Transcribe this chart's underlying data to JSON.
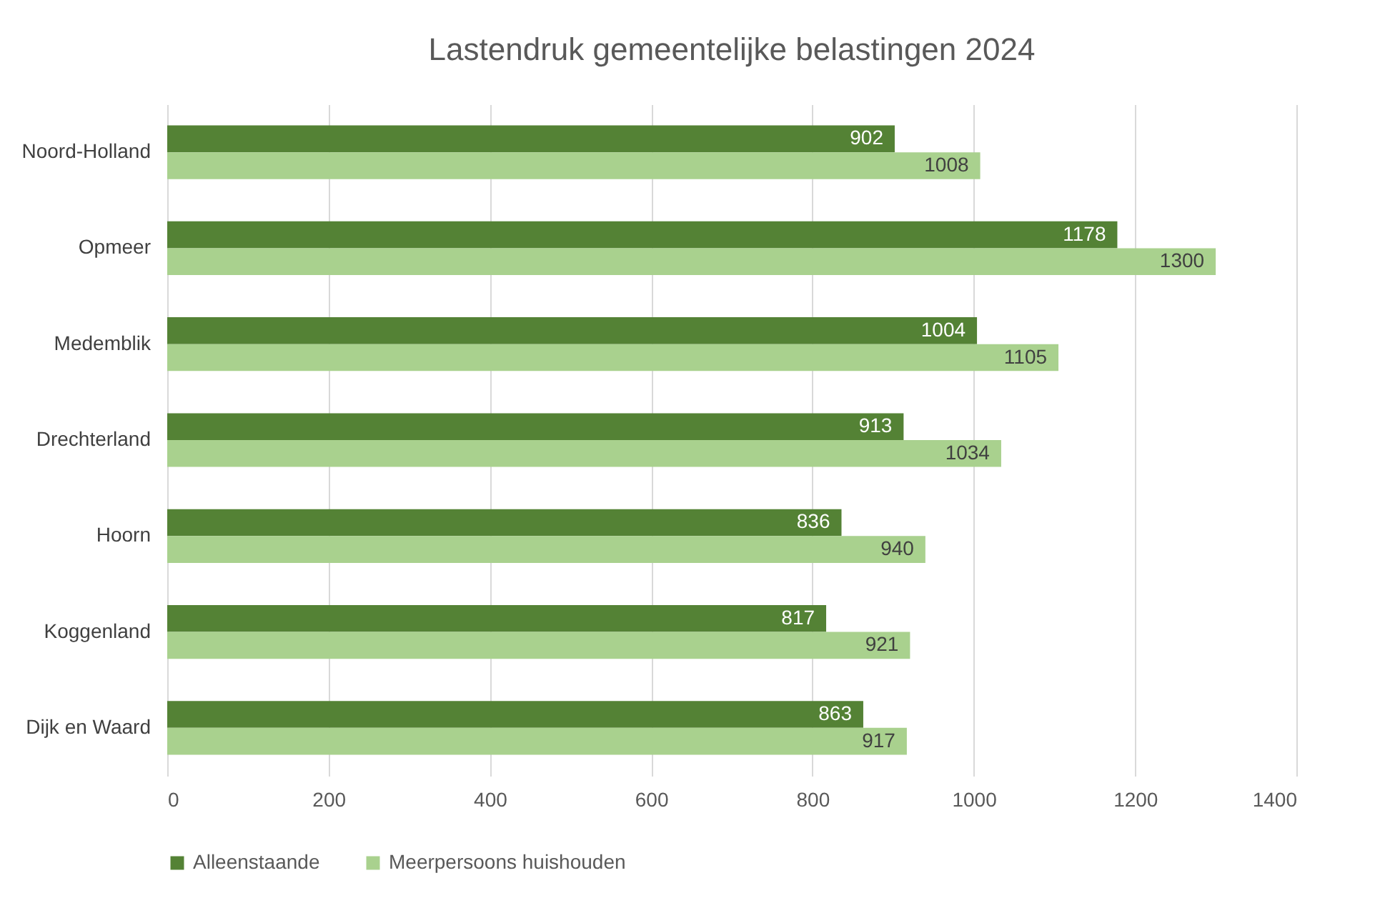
{
  "chart_data": {
    "type": "bar",
    "orientation": "horizontal",
    "title": "Lastendruk gemeentelijke belastingen 2024",
    "categories": [
      "Noord-Holland",
      "Opmeer",
      "Medemblik",
      "Drechterland",
      "Hoorn",
      "Koggenland",
      "Dijk en Waard"
    ],
    "series": [
      {
        "name": "Alleenstaande",
        "color": "#548235",
        "values": [
          902,
          1178,
          1004,
          913,
          836,
          817,
          863
        ]
      },
      {
        "name": "Meerpersoons huishouden",
        "color": "#a9d18e",
        "values": [
          1008,
          1300,
          1105,
          1034,
          940,
          921,
          917
        ]
      }
    ],
    "xlim": [
      0,
      1400
    ],
    "xticks": [
      0,
      200,
      400,
      600,
      800,
      1000,
      1200,
      1400
    ],
    "grid": "x",
    "legend": "bottom",
    "data_labels": true
  }
}
